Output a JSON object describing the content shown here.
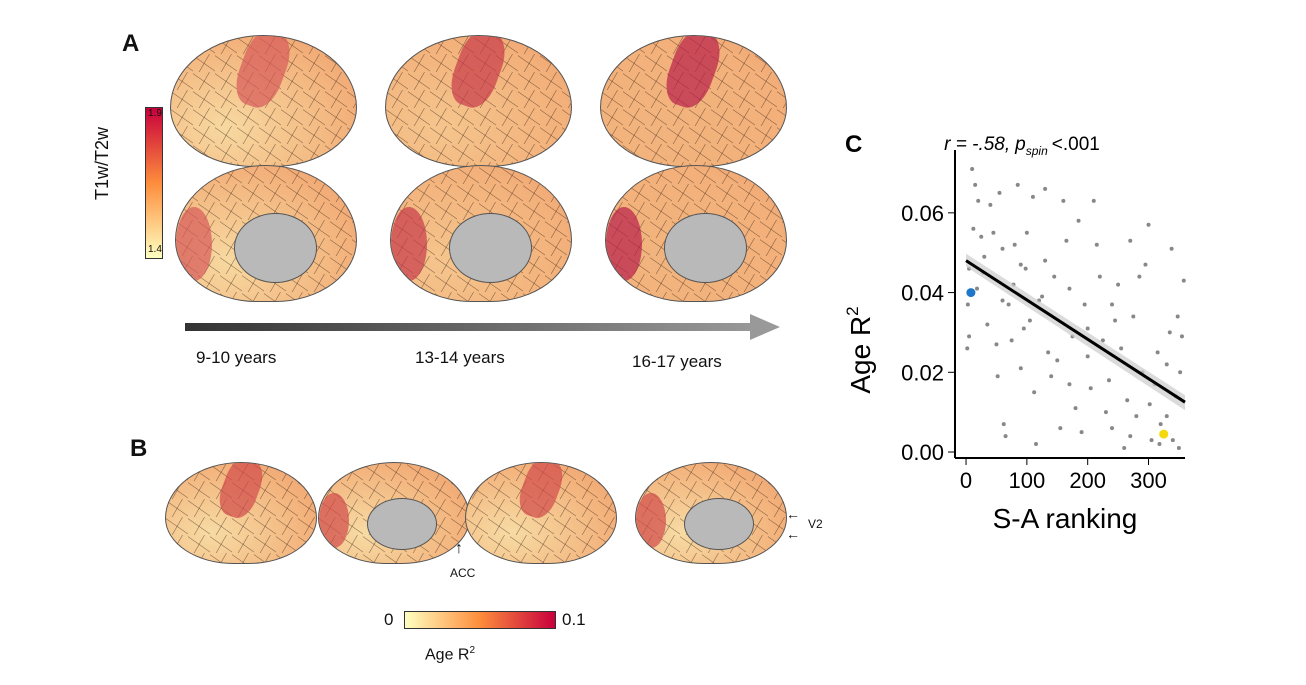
{
  "panel_a": {
    "letter": "A",
    "colorbar": {
      "title": "T1w/T2w",
      "max": "1.9",
      "min": "1.4",
      "colors": [
        "#ffffc0",
        "#fd8d3c",
        "#c8003c"
      ]
    },
    "ages": [
      "9-10 years",
      "13-14 years",
      "16-17 years"
    ],
    "brain_colors": [
      "#f7d9a0",
      "#f5c58d",
      "#f2b47e"
    ]
  },
  "panel_b": {
    "letter": "B",
    "annotations": {
      "acc": "ACC",
      "v2": "V2"
    },
    "colorbar": {
      "min": "0",
      "max": "0.1",
      "label": "Age R",
      "label_sup": "2"
    }
  },
  "chart_data": {
    "type": "scatter",
    "panel_letter": "C",
    "title_r": "r = -.58,",
    "title_p": "p",
    "title_p_sub": "spin",
    "title_p_val": "<.001",
    "xlabel": "S-A ranking",
    "ylabel": "Age R",
    "ylabel_sup": "2",
    "xlim": [
      -5,
      360
    ],
    "ylim": [
      -0.002,
      0.072
    ],
    "xticks": [
      "0",
      "100",
      "200",
      "300"
    ],
    "xtick_values": [
      0,
      100,
      200,
      300
    ],
    "yticks": [
      "0.00",
      "0.02",
      "0.04",
      "0.06"
    ],
    "ytick_values": [
      0,
      0.02,
      0.04,
      0.06
    ],
    "fit_line": {
      "x": [
        0,
        360
      ],
      "y": [
        0.048,
        0.0125
      ]
    },
    "highlight": [
      {
        "name": "ACC",
        "x": 8,
        "y": 0.04,
        "color": "#1f77c9"
      },
      {
        "name": "V2",
        "x": 325,
        "y": 0.0045,
        "color": "#f5d90a"
      }
    ],
    "point_color": "#888888",
    "points": [
      [
        10,
        0.071
      ],
      [
        15,
        0.067
      ],
      [
        20,
        0.063
      ],
      [
        12,
        0.056
      ],
      [
        25,
        0.054
      ],
      [
        30,
        0.049
      ],
      [
        5,
        0.046
      ],
      [
        3,
        0.037
      ],
      [
        2,
        0.026
      ],
      [
        5,
        0.029
      ],
      [
        18,
        0.041
      ],
      [
        28,
        0.045
      ],
      [
        35,
        0.032
      ],
      [
        40,
        0.062
      ],
      [
        45,
        0.055
      ],
      [
        50,
        0.027
      ],
      [
        52,
        0.019
      ],
      [
        55,
        0.065
      ],
      [
        60,
        0.051
      ],
      [
        62,
        0.007
      ],
      [
        65,
        0.004
      ],
      [
        70,
        0.037
      ],
      [
        75,
        0.028
      ],
      [
        78,
        0.042
      ],
      [
        80,
        0.052
      ],
      [
        85,
        0.067
      ],
      [
        90,
        0.047
      ],
      [
        95,
        0.031
      ],
      [
        98,
        0.046
      ],
      [
        100,
        0.055
      ],
      [
        105,
        0.033
      ],
      [
        110,
        0.064
      ],
      [
        112,
        0.015
      ],
      [
        115,
        0.002
      ],
      [
        120,
        0.038
      ],
      [
        125,
        0.039
      ],
      [
        130,
        0.066
      ],
      [
        135,
        0.025
      ],
      [
        140,
        0.019
      ],
      [
        145,
        0.044
      ],
      [
        150,
        0.023
      ],
      [
        155,
        0.006
      ],
      [
        160,
        0.063
      ],
      [
        165,
        0.053
      ],
      [
        170,
        0.041
      ],
      [
        175,
        0.029
      ],
      [
        180,
        0.011
      ],
      [
        185,
        0.058
      ],
      [
        190,
        0.005
      ],
      [
        195,
        0.037
      ],
      [
        200,
        0.024
      ],
      [
        205,
        0.016
      ],
      [
        210,
        0.063
      ],
      [
        215,
        0.052
      ],
      [
        220,
        0.044
      ],
      [
        225,
        0.028
      ],
      [
        230,
        0.01
      ],
      [
        235,
        0.018
      ],
      [
        240,
        0.006
      ],
      [
        245,
        0.033
      ],
      [
        250,
        0.042
      ],
      [
        255,
        0.026
      ],
      [
        260,
        0.001
      ],
      [
        265,
        0.013
      ],
      [
        270,
        0.053
      ],
      [
        275,
        0.034
      ],
      [
        280,
        0.009
      ],
      [
        285,
        0.044
      ],
      [
        290,
        0.02
      ],
      [
        295,
        0.047
      ],
      [
        300,
        0.057
      ],
      [
        302,
        0.012
      ],
      [
        305,
        0.003
      ],
      [
        310,
        0.017
      ],
      [
        315,
        0.025
      ],
      [
        318,
        0.002
      ],
      [
        320,
        0.007
      ],
      [
        330,
        0.009
      ],
      [
        335,
        0.03
      ],
      [
        338,
        0.051
      ],
      [
        340,
        0.003
      ],
      [
        345,
        0.014
      ],
      [
        348,
        0.034
      ],
      [
        350,
        0.001
      ],
      [
        352,
        0.02
      ],
      [
        355,
        0.029
      ],
      [
        358,
        0.043
      ],
      [
        130,
        0.048
      ],
      [
        90,
        0.021
      ],
      [
        60,
        0.038
      ],
      [
        240,
        0.037
      ],
      [
        200,
        0.031
      ],
      [
        170,
        0.017
      ],
      [
        330,
        0.022
      ],
      [
        270,
        0.004
      ]
    ]
  }
}
